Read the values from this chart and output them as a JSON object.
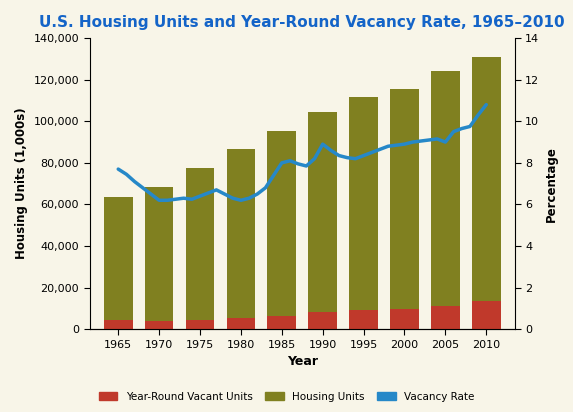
{
  "title": "U.S. Housing Units and Year-Round Vacancy Rate, 1965–2010",
  "years": [
    1965,
    1970,
    1975,
    1980,
    1985,
    1990,
    1995,
    2000,
    2005,
    2010
  ],
  "housing_units": [
    63500,
    68500,
    77500,
    86500,
    95500,
    104500,
    111500,
    115500,
    124000,
    131000
  ],
  "vacant_units": [
    4200,
    3700,
    4500,
    5500,
    6500,
    8500,
    9000,
    9500,
    11000,
    13500
  ],
  "vacancy_rate_line_x": [
    1965,
    1966,
    1967,
    1968,
    1969,
    1970,
    1971,
    1972,
    1973,
    1974,
    1975,
    1976,
    1977,
    1978,
    1979,
    1980,
    1981,
    1982,
    1983,
    1984,
    1985,
    1986,
    1987,
    1988,
    1989,
    1990,
    1991,
    1992,
    1993,
    1994,
    1995,
    1996,
    1997,
    1998,
    1999,
    2000,
    2001,
    2002,
    2003,
    2004,
    2005,
    2006,
    2007,
    2008,
    2009,
    2010
  ],
  "vacancy_rate_line_y": [
    7.7,
    7.45,
    7.1,
    6.8,
    6.5,
    6.2,
    6.2,
    6.25,
    6.3,
    6.25,
    6.4,
    6.55,
    6.7,
    6.5,
    6.3,
    6.2,
    6.3,
    6.5,
    6.8,
    7.4,
    8.0,
    8.1,
    7.95,
    7.85,
    8.2,
    8.9,
    8.6,
    8.35,
    8.25,
    8.2,
    8.35,
    8.5,
    8.65,
    8.8,
    8.85,
    8.9,
    9.0,
    9.05,
    9.1,
    9.15,
    9.0,
    9.5,
    9.65,
    9.75,
    10.3,
    10.8
  ],
  "bar_color_housing": "#808020",
  "bar_color_vacant": "#c0392b",
  "line_color": "#2688c8",
  "background_color": "#f8f5e8",
  "title_color": "#1464c8",
  "ylabel_left": "Housing Units (1,000s)",
  "ylabel_right": "Percentage",
  "xlabel": "Year",
  "ylim_left": [
    0,
    140000
  ],
  "ylim_right": [
    0,
    14
  ],
  "yticks_left": [
    0,
    20000,
    40000,
    60000,
    80000,
    100000,
    120000,
    140000
  ],
  "yticks_right": [
    0,
    2,
    4,
    6,
    8,
    10,
    12,
    14
  ],
  "bar_width": 3.5,
  "legend_labels": [
    "Year-Round Vacant Units",
    "Housing Units",
    "Vacancy Rate"
  ]
}
